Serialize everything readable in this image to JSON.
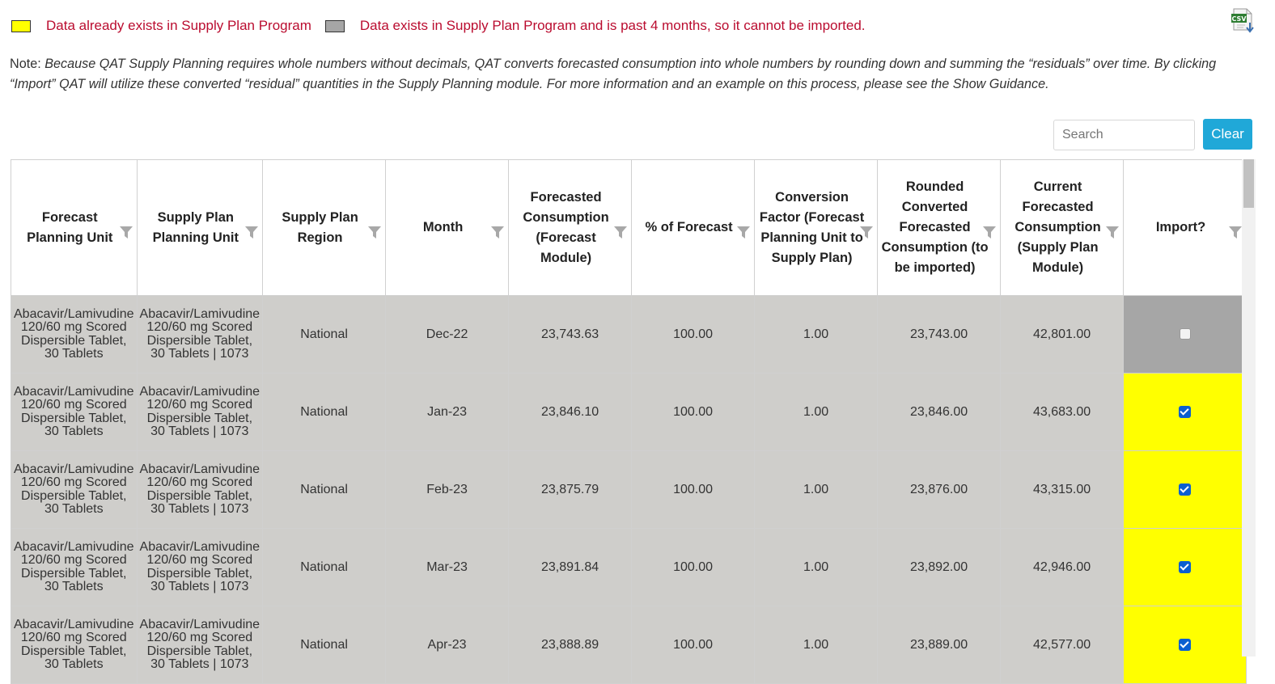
{
  "legend": {
    "items": [
      {
        "color": "#ffff00",
        "text": "Data already exists in Supply Plan Program"
      },
      {
        "color": "#a6a6a6",
        "text": "Data exists in Supply Plan Program and is past 4 months, so it cannot be imported."
      }
    ]
  },
  "csv_icon": {
    "label": "CSV",
    "icon": "csv-download-icon"
  },
  "note": {
    "prefix": "Note:",
    "body": "Because QAT Supply Planning requires whole numbers without decimals, QAT converts forecasted consumption into whole numbers by rounding down and summing the “residuals” over time. By clicking “Import” QAT will utilize these converted “residual” quantities in the Supply Planning module. For more information and an example on this process, please see the Show Guidance."
  },
  "search": {
    "placeholder": "Search",
    "value": ""
  },
  "clear_label": "Clear",
  "table": {
    "headers": [
      "Forecast Planning Unit",
      "Supply Plan Planning Unit",
      "Supply Plan Region",
      "Month",
      "Forecasted Consumption (Forecast Module)",
      "% of Forecast",
      "Conversion Factor (Forecast Planning Unit to Supply Plan)",
      "Rounded Converted Forecasted Consumption (to be imported)",
      "Current Forecasted Consumption (Supply Plan Module)",
      "Import?"
    ],
    "rows": [
      {
        "fpu": "Abacavir/Lamivudine 120/60 mg Scored Dispersible Tablet, 30 Tablets",
        "sppu": "Abacavir/Lamivudine 120/60 mg Scored Dispersible Tablet, 30 Tablets | 1073",
        "region": "National",
        "month": "Dec-22",
        "forecast": "23,743.63",
        "pct": "100.00",
        "factor": "1.00",
        "rounded": "23,743.00",
        "current": "42,801.00",
        "import": false,
        "status": "past"
      },
      {
        "fpu": "Abacavir/Lamivudine 120/60 mg Scored Dispersible Tablet, 30 Tablets",
        "sppu": "Abacavir/Lamivudine 120/60 mg Scored Dispersible Tablet, 30 Tablets | 1073",
        "region": "National",
        "month": "Jan-23",
        "forecast": "23,846.10",
        "pct": "100.00",
        "factor": "1.00",
        "rounded": "23,846.00",
        "current": "43,683.00",
        "import": true,
        "status": "exists"
      },
      {
        "fpu": "Abacavir/Lamivudine 120/60 mg Scored Dispersible Tablet, 30 Tablets",
        "sppu": "Abacavir/Lamivudine 120/60 mg Scored Dispersible Tablet, 30 Tablets | 1073",
        "region": "National",
        "month": "Feb-23",
        "forecast": "23,875.79",
        "pct": "100.00",
        "factor": "1.00",
        "rounded": "23,876.00",
        "current": "43,315.00",
        "import": true,
        "status": "exists"
      },
      {
        "fpu": "Abacavir/Lamivudine 120/60 mg Scored Dispersible Tablet, 30 Tablets",
        "sppu": "Abacavir/Lamivudine 120/60 mg Scored Dispersible Tablet, 30 Tablets | 1073",
        "region": "National",
        "month": "Mar-23",
        "forecast": "23,891.84",
        "pct": "100.00",
        "factor": "1.00",
        "rounded": "23,892.00",
        "current": "42,946.00",
        "import": true,
        "status": "exists"
      },
      {
        "fpu": "Abacavir/Lamivudine 120/60 mg Scored Dispersible Tablet, 30 Tablets",
        "sppu": "Abacavir/Lamivudine 120/60 mg Scored Dispersible Tablet, 30 Tablets | 1073",
        "region": "National",
        "month": "Apr-23",
        "forecast": "23,888.89",
        "pct": "100.00",
        "factor": "1.00",
        "rounded": "23,889.00",
        "current": "42,577.00",
        "import": true,
        "status": "exists"
      }
    ]
  }
}
